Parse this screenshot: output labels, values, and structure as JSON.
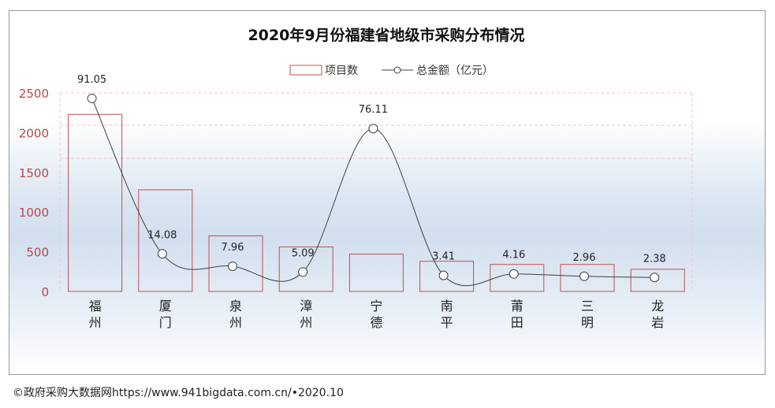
{
  "chart_data": {
    "type": "bar",
    "title": "2020年9月份福建省地级市采购分布情况",
    "categories": [
      "福州",
      "厦门",
      "泉州",
      "漳州",
      "宁德",
      "南平",
      "莆田",
      "三明",
      "龙岩"
    ],
    "series": [
      {
        "name": "项目数",
        "type": "bar",
        "axis": "left",
        "color": "#c0504d",
        "values": [
          2230,
          1280,
          700,
          560,
          470,
          380,
          340,
          340,
          280
        ]
      },
      {
        "name": "总金额（亿元）",
        "type": "line",
        "axis": "right",
        "color": "#404040",
        "values": [
          91.05,
          14.08,
          7.96,
          5.09,
          76.11,
          3.41,
          4.16,
          2.96,
          2.38
        ],
        "labels": [
          "91.05",
          "14.08",
          "7.96",
          "5.09",
          "76.11",
          "3.41",
          "4.16",
          "2.96",
          "2.38"
        ]
      }
    ],
    "ylim": [
      0,
      2500
    ],
    "yticks": [
      "0",
      "500",
      "1000",
      "1500",
      "2000",
      "2500"
    ],
    "grid": false,
    "legend_position": "top-center"
  },
  "footer": "©政府采购大数据网https://www.941bigdata.com.cn/•2020.10"
}
